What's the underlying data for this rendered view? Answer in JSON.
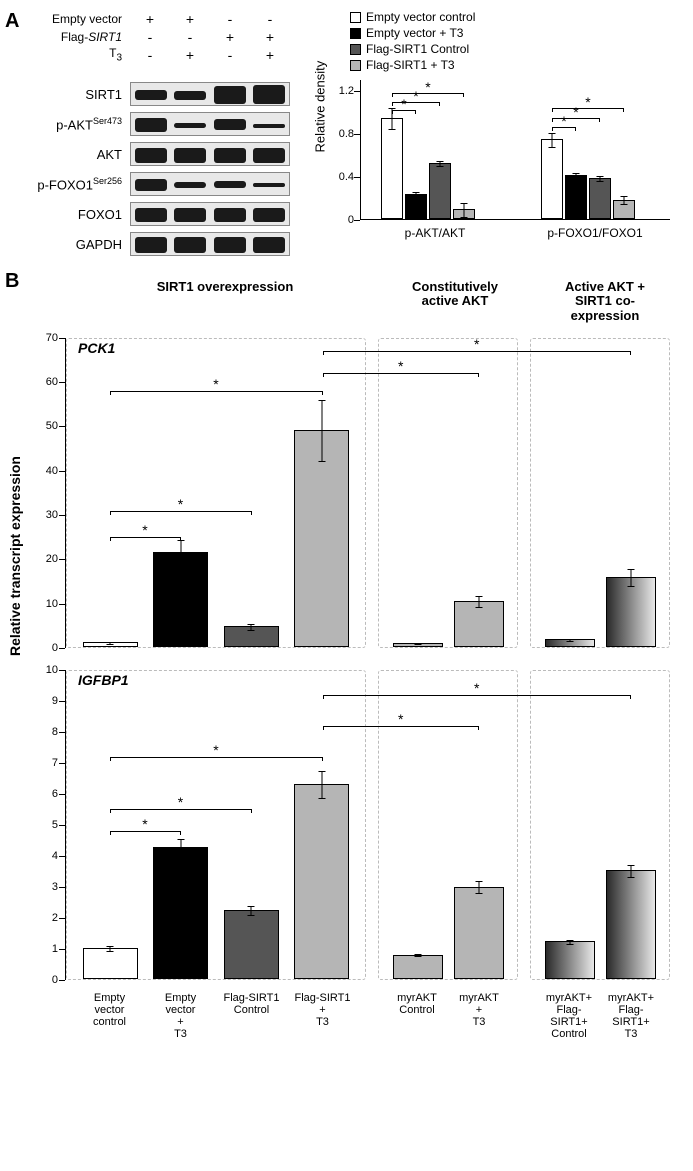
{
  "panels": {
    "a": "A",
    "b": "B"
  },
  "blot": {
    "header_labels": [
      "Empty vector",
      "Flag-SIRT1",
      "T₃"
    ],
    "header_values": [
      [
        "+",
        "+",
        "-",
        "-"
      ],
      [
        "-",
        "-",
        "+",
        "+"
      ],
      [
        "-",
        "+",
        "-",
        "+"
      ]
    ],
    "sub_t3": "3",
    "rows": [
      {
        "label": "SIRT1",
        "bands": [
          {
            "h": 10,
            "t": 7
          },
          {
            "h": 9,
            "t": 8
          },
          {
            "h": 18,
            "t": 3
          },
          {
            "h": 19,
            "t": 2
          }
        ]
      },
      {
        "label": "p-AKT",
        "sup": "Ser473",
        "bands": [
          {
            "h": 14,
            "t": 5
          },
          {
            "h": 5,
            "t": 10
          },
          {
            "h": 11,
            "t": 6
          },
          {
            "h": 4,
            "t": 11
          }
        ]
      },
      {
        "label": "AKT",
        "bands": [
          {
            "h": 15,
            "t": 5
          },
          {
            "h": 15,
            "t": 5
          },
          {
            "h": 15,
            "t": 5
          },
          {
            "h": 15,
            "t": 5
          }
        ]
      },
      {
        "label": "p-FOXO1",
        "sup": "Ser256",
        "bands": [
          {
            "h": 12,
            "t": 6
          },
          {
            "h": 6,
            "t": 9
          },
          {
            "h": 7,
            "t": 8
          },
          {
            "h": 4,
            "t": 10
          }
        ]
      },
      {
        "label": "FOXO1",
        "bands": [
          {
            "h": 14,
            "t": 5
          },
          {
            "h": 14,
            "t": 5
          },
          {
            "h": 14,
            "t": 5
          },
          {
            "h": 14,
            "t": 5
          }
        ]
      },
      {
        "label": "GAPDH",
        "bands": [
          {
            "h": 16,
            "t": 4
          },
          {
            "h": 16,
            "t": 4
          },
          {
            "h": 16,
            "t": 4
          },
          {
            "h": 16,
            "t": 4
          }
        ]
      }
    ]
  },
  "chartA": {
    "legend": [
      {
        "label": "Empty vector control",
        "color": "#ffffff"
      },
      {
        "label": "Empty vector + T3",
        "color": "#000000"
      },
      {
        "label": "Flag-SIRT1 Control",
        "color": "#555555"
      },
      {
        "label": "Flag-SIRT1 + T3",
        "color": "#b5b5b5"
      }
    ],
    "ylabel": "Relative density",
    "ymax": 1.3,
    "yticks": [
      0,
      0.4,
      0.8,
      1.2
    ],
    "groups": [
      {
        "name": "p-AKT/AKT",
        "values": [
          0.94,
          0.23,
          0.52,
          0.09
        ],
        "errs": [
          0.1,
          0.03,
          0.03,
          0.07
        ]
      },
      {
        "name": "p-FOXO1/FOXO1",
        "values": [
          0.74,
          0.41,
          0.38,
          0.18
        ],
        "errs": [
          0.07,
          0.03,
          0.03,
          0.04
        ]
      }
    ],
    "sig_lines_g1": [
      {
        "from": 0,
        "to": 1,
        "y": 1.02
      },
      {
        "from": 0,
        "to": 2,
        "y": 1.1
      },
      {
        "from": 0,
        "to": 3,
        "y": 1.18
      }
    ],
    "sig_lines_g2": [
      {
        "from": 0,
        "to": 1,
        "y": 0.86
      },
      {
        "from": 0,
        "to": 2,
        "y": 0.95
      },
      {
        "from": 0,
        "to": 3,
        "y": 1.04
      }
    ]
  },
  "panelB": {
    "col_headers": [
      "SIRT1 overexpression",
      "Constitutively active AKT",
      "Active AKT + SIRT1 co-expression"
    ],
    "ylabel": "Relative transcript expression",
    "charts": [
      {
        "gene": "PCK1",
        "ymax": 70,
        "yticks": [
          0,
          10,
          20,
          30,
          40,
          50,
          60,
          70
        ],
        "groups": [
          {
            "values": [
              1.0,
              21.5,
              4.7,
              49.0
            ],
            "errs": [
              0.3,
              2.8,
              0.8,
              7.0
            ],
            "colors": [
              "#ffffff",
              "#000000",
              "#555555",
              "#b5b5b5"
            ]
          },
          {
            "values": [
              0.8,
              10.3
            ],
            "errs": [
              0.2,
              1.4
            ],
            "colors": [
              "#b5b5b5",
              "#b5b5b5"
            ]
          },
          {
            "values": [
              1.7,
              15.8
            ],
            "errs": [
              0.3,
              2.1
            ],
            "colors": [
              "grad",
              "grad"
            ]
          }
        ],
        "sig_within": [
          {
            "g": 0,
            "from": 0,
            "to": 1,
            "y": 25
          },
          {
            "g": 0,
            "from": 0,
            "to": 2,
            "y": 31
          },
          {
            "g": 0,
            "from": 0,
            "to": 3,
            "y": 58
          }
        ],
        "sig_across": [
          {
            "from_g": 0,
            "from_i": 3,
            "to_g": 1,
            "to_i": 1,
            "y": 62
          },
          {
            "from_g": 0,
            "from_i": 3,
            "to_g": 2,
            "to_i": 1,
            "y": 67
          }
        ]
      },
      {
        "gene": "IGFBP1",
        "ymax": 10,
        "yticks": [
          0,
          1,
          2,
          3,
          4,
          5,
          6,
          7,
          8,
          9,
          10
        ],
        "groups": [
          {
            "values": [
              1.0,
              4.25,
              2.22,
              6.3
            ],
            "errs": [
              0.1,
              0.3,
              0.15,
              0.45
            ],
            "colors": [
              "#ffffff",
              "#000000",
              "#555555",
              "#b5b5b5"
            ]
          },
          {
            "values": [
              0.78,
              2.98
            ],
            "errs": [
              0.05,
              0.2
            ],
            "colors": [
              "#b5b5b5",
              "#b5b5b5"
            ]
          },
          {
            "values": [
              1.22,
              3.5
            ],
            "errs": [
              0.08,
              0.22
            ],
            "colors": [
              "grad",
              "grad"
            ]
          }
        ],
        "sig_within": [
          {
            "g": 0,
            "from": 0,
            "to": 1,
            "y": 4.8
          },
          {
            "g": 0,
            "from": 0,
            "to": 2,
            "y": 5.5
          },
          {
            "g": 0,
            "from": 0,
            "to": 3,
            "y": 7.2
          }
        ],
        "sig_across": [
          {
            "from_g": 0,
            "from_i": 3,
            "to_g": 1,
            "to_i": 1,
            "y": 8.2
          },
          {
            "from_g": 0,
            "from_i": 3,
            "to_g": 2,
            "to_i": 1,
            "y": 9.2
          }
        ]
      }
    ],
    "xlabels": [
      [
        "Empty vector control",
        "Empty vector + T3",
        "Flag-SIRT1 Control",
        "Flag-SIRT1 + T3"
      ],
      [
        "myrAKT Control",
        "myrAKT + T3"
      ],
      [
        "myrAKT+ Flag-SIRT1+ Control",
        "myrAKT+ Flag-SIRT1+ T3"
      ]
    ]
  },
  "colors": {
    "ev_control": "#ffffff",
    "ev_t3": "#000000",
    "flag_control": "#555555",
    "flag_t3": "#b5b5b5",
    "grad_start": "#2a2a2a",
    "grad_end": "#e8e8e8"
  }
}
